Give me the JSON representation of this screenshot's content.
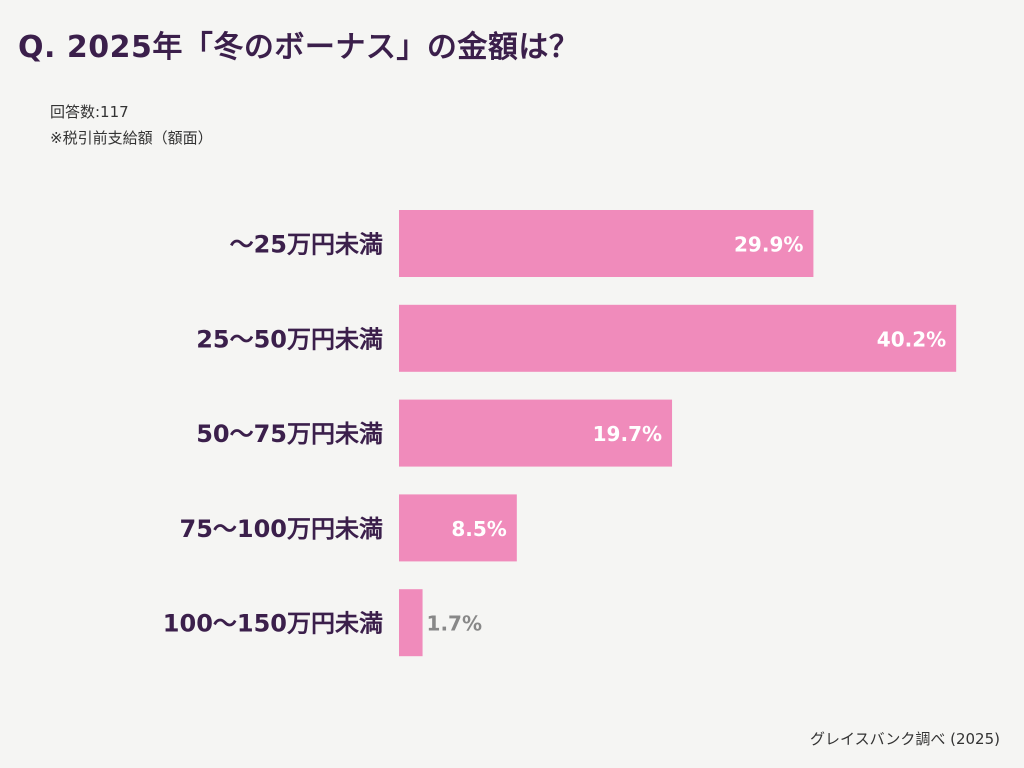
{
  "title": "Q. 2025年「冬のボーナス」の金額は？",
  "respondents": "回答数:117",
  "note": "※税引前支給額（額面）",
  "source": "グレイスバンク調べ (2025)",
  "chart_data": {
    "type": "bar",
    "orientation": "horizontal",
    "categories": [
      "〜25万円未満",
      "25〜50万円未満",
      "50〜75万円未満",
      "75〜100万円未満",
      "100〜150万円未満"
    ],
    "values": [
      29.9,
      40.2,
      19.7,
      8.5,
      1.7
    ],
    "data_labels": [
      "29.9%",
      "40.2%",
      "19.7%",
      "8.5%",
      "1.7%"
    ],
    "unit": "%",
    "grid": false,
    "bar_color": "#f08bbb",
    "label_color": "#3b1f4b"
  }
}
